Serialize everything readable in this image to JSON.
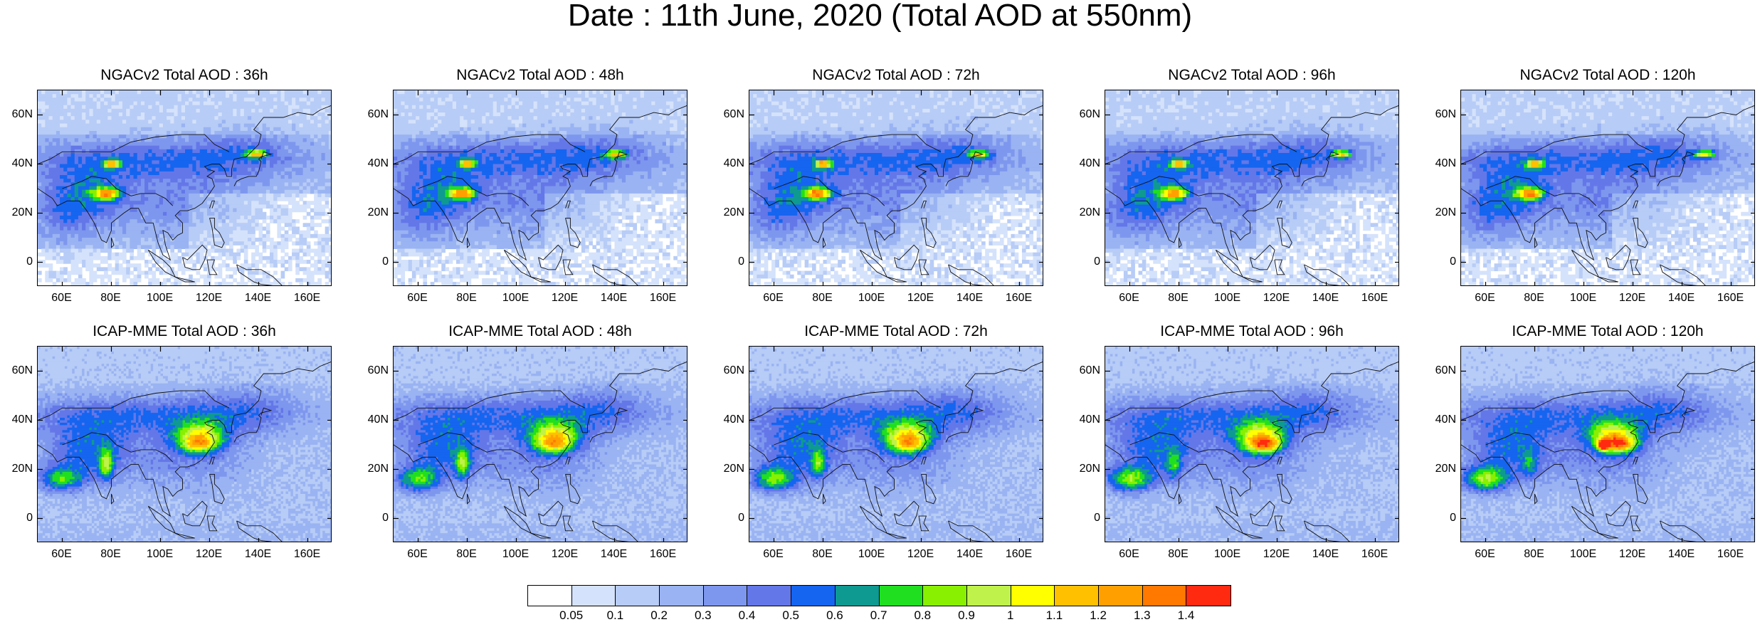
{
  "title": "Date : 11th June, 2020 (Total AOD at 550nm)",
  "panels": [
    {
      "title": "NGACv2 Total AOD : 36h",
      "model": "NGACv2",
      "lead": "36h"
    },
    {
      "title": "NGACv2 Total AOD : 48h",
      "model": "NGACv2",
      "lead": "48h"
    },
    {
      "title": "NGACv2 Total AOD : 72h",
      "model": "NGACv2",
      "lead": "72h"
    },
    {
      "title": "NGACv2 Total AOD : 96h",
      "model": "NGACv2",
      "lead": "96h"
    },
    {
      "title": "NGACv2 Total AOD : 120h",
      "model": "NGACv2",
      "lead": "120h"
    },
    {
      "title": "ICAP-MME Total AOD : 36h",
      "model": "ICAP-MME",
      "lead": "36h"
    },
    {
      "title": "ICAP-MME Total AOD : 48h",
      "model": "ICAP-MME",
      "lead": "48h"
    },
    {
      "title": "ICAP-MME Total AOD : 72h",
      "model": "ICAP-MME",
      "lead": "72h"
    },
    {
      "title": "ICAP-MME Total AOD : 96h",
      "model": "ICAP-MME",
      "lead": "96h"
    },
    {
      "title": "ICAP-MME Total AOD : 120h",
      "model": "ICAP-MME",
      "lead": "120h"
    }
  ],
  "axes": {
    "lat_ticks": [
      "60N",
      "40N",
      "20N",
      "0"
    ],
    "lon_ticks": [
      "60E",
      "80E",
      "100E",
      "120E",
      "140E",
      "160E"
    ],
    "lon_range": [
      50,
      170
    ],
    "lat_range": [
      -10,
      70
    ]
  },
  "colorbar": {
    "labels": [
      "0.05",
      "0.1",
      "0.2",
      "0.3",
      "0.4",
      "0.5",
      "0.6",
      "0.7",
      "0.8",
      "0.9",
      "1",
      "1.1",
      "1.2",
      "1.3",
      "1.4"
    ],
    "colors": [
      "#ffffff",
      "#d5e2fb",
      "#b7ccf6",
      "#9ab3f2",
      "#7e97ee",
      "#6477e8",
      "#1565f0",
      "#0e9a90",
      "#20df20",
      "#88f000",
      "#bff24a",
      "#ffff00",
      "#ffc000",
      "#ffa000",
      "#ff7800",
      "#ff2a10"
    ]
  }
}
